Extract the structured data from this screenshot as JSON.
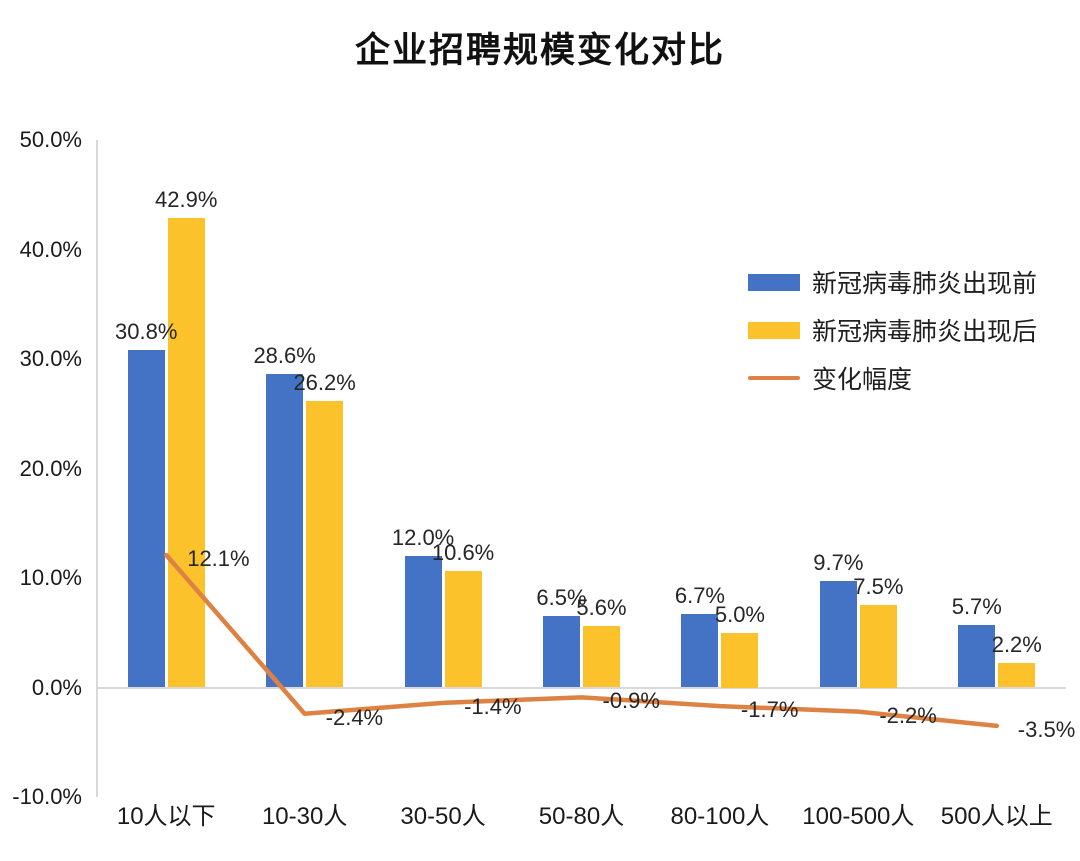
{
  "title": "企业招聘规模变化对比",
  "chart_data": {
    "type": "bar",
    "subtype": "grouped bars with overlay line",
    "categories": [
      "10人以下",
      "10-30人",
      "30-50人",
      "50-80人",
      "80-100人",
      "100-500人",
      "500人以上"
    ],
    "series": [
      {
        "name": "新冠病毒肺炎出现前",
        "type": "bar",
        "color": "#4472C4",
        "values": [
          30.8,
          28.6,
          12.0,
          6.5,
          6.7,
          9.7,
          5.7
        ],
        "labels": [
          "30.8%",
          "28.6%",
          "12.0%",
          "6.5%",
          "6.7%",
          "9.7%",
          "5.7%"
        ]
      },
      {
        "name": "新冠病毒肺炎出现后",
        "type": "bar",
        "color": "#FCC22C",
        "values": [
          42.9,
          26.2,
          10.6,
          5.6,
          5.0,
          7.5,
          2.2
        ],
        "labels": [
          "42.9%",
          "26.2%",
          "10.6%",
          "5.6%",
          "5.0%",
          "7.5%",
          "2.2%"
        ]
      },
      {
        "name": "变化幅度",
        "type": "line",
        "color": "#DE8244",
        "values": [
          12.1,
          -2.4,
          -1.4,
          -0.9,
          -1.7,
          -2.2,
          -3.5
        ],
        "labels": [
          "12.1%",
          "-2.4%",
          "-1.4%",
          "-0.9%",
          "-1.7%",
          "-2.2%",
          "-3.5%"
        ]
      }
    ],
    "ylim": [
      -10,
      50
    ],
    "yticks": [
      "50.0%",
      "40.0%",
      "30.0%",
      "20.0%",
      "10.0%",
      "0.0%",
      "-10.0%"
    ],
    "grid": false,
    "legend_position": "upper-right inside plot",
    "axis_color": "#D9D9D9"
  }
}
